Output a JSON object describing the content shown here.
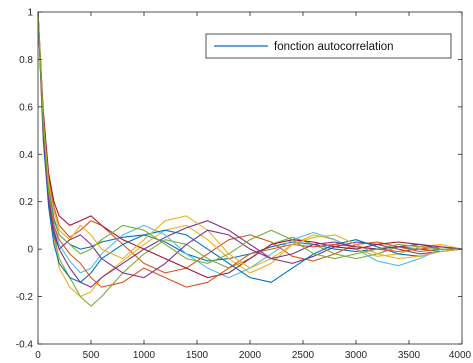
{
  "chart_data": {
    "type": "line",
    "title": "",
    "xlabel": "",
    "ylabel": "",
    "xlim": [
      0,
      4000
    ],
    "ylim": [
      -0.4,
      1
    ],
    "xticks": [
      0,
      500,
      1000,
      1500,
      2000,
      2500,
      3000,
      3500,
      4000
    ],
    "yticks": [
      -0.4,
      -0.2,
      0,
      0.2,
      0.4,
      0.6,
      0.8,
      1
    ],
    "grid": false,
    "legend": {
      "position": "top-right",
      "entries": [
        "fonction autocorrelation"
      ]
    },
    "series": [
      {
        "name": "fonction autocorrelation",
        "color": "#0072bd",
        "x": [
          0,
          50,
          100,
          150,
          200,
          300,
          400,
          500,
          600,
          800,
          1000,
          1200,
          1400,
          1600,
          1800,
          2000,
          2200,
          2400,
          2600,
          2800,
          3000,
          3200,
          3400,
          3600,
          3800,
          4000
        ],
        "y": [
          1,
          0.5,
          0.26,
          0.13,
          0.06,
          0.02,
          0.0,
          0.01,
          0.03,
          0.05,
          0.06,
          0.03,
          -0.02,
          -0.05,
          -0.04,
          -0.02,
          0.01,
          0.03,
          0.02,
          0.0,
          -0.01,
          0.0,
          0.01,
          0.0,
          -0.01,
          0.0
        ]
      },
      {
        "color": "#d95319",
        "x": [
          0,
          50,
          100,
          150,
          200,
          300,
          400,
          500,
          600,
          800,
          1000,
          1200,
          1400,
          1600,
          1800,
          2000,
          2200,
          2400,
          2600,
          2800,
          3000,
          3200,
          3400,
          3600,
          3800,
          4000
        ],
        "y": [
          1,
          0.55,
          0.3,
          0.18,
          0.1,
          0.05,
          0.08,
          0.12,
          0.1,
          0.02,
          -0.06,
          -0.1,
          -0.08,
          -0.02,
          0.04,
          0.06,
          0.03,
          -0.03,
          -0.05,
          -0.02,
          0.02,
          0.03,
          0.01,
          -0.01,
          0.0,
          0.0
        ]
      },
      {
        "color": "#edb120",
        "x": [
          0,
          50,
          100,
          150,
          200,
          300,
          400,
          500,
          600,
          800,
          1000,
          1200,
          1400,
          1600,
          1800,
          2000,
          2200,
          2400,
          2600,
          2800,
          3000,
          3200,
          3400,
          3600,
          3800,
          4000
        ],
        "y": [
          1,
          0.45,
          0.2,
          0.05,
          -0.08,
          -0.16,
          -0.2,
          -0.18,
          -0.12,
          -0.05,
          0.02,
          0.08,
          0.1,
          0.04,
          -0.04,
          -0.1,
          -0.06,
          0.02,
          0.06,
          0.04,
          0.0,
          -0.03,
          -0.02,
          0.01,
          0.02,
          0.0
        ]
      },
      {
        "color": "#7e2f8e",
        "x": [
          0,
          50,
          100,
          150,
          200,
          300,
          400,
          500,
          600,
          800,
          1000,
          1200,
          1400,
          1600,
          1800,
          2000,
          2200,
          2400,
          2600,
          2800,
          3000,
          3200,
          3400,
          3600,
          3800,
          4000
        ],
        "y": [
          1,
          0.5,
          0.22,
          0.08,
          0.0,
          -0.08,
          -0.14,
          -0.16,
          -0.12,
          -0.06,
          0.0,
          0.05,
          0.09,
          0.12,
          0.08,
          0.02,
          -0.04,
          -0.06,
          -0.03,
          0.01,
          0.03,
          0.02,
          0.0,
          -0.02,
          -0.01,
          0.0
        ]
      },
      {
        "color": "#77ac30",
        "x": [
          0,
          50,
          100,
          150,
          200,
          300,
          400,
          500,
          600,
          800,
          1000,
          1200,
          1400,
          1600,
          1800,
          2000,
          2200,
          2400,
          2600,
          2800,
          3000,
          3200,
          3400,
          3600,
          3800,
          4000
        ],
        "y": [
          1,
          0.48,
          0.2,
          0.06,
          -0.04,
          -0.12,
          -0.2,
          -0.24,
          -0.2,
          -0.1,
          -0.02,
          0.04,
          0.02,
          -0.04,
          -0.08,
          -0.04,
          0.02,
          0.05,
          0.02,
          -0.02,
          -0.04,
          -0.02,
          0.01,
          0.02,
          0.0,
          0.0
        ]
      },
      {
        "color": "#4dbeee",
        "x": [
          0,
          50,
          100,
          150,
          200,
          300,
          400,
          500,
          600,
          800,
          1000,
          1200,
          1400,
          1600,
          1800,
          2000,
          2200,
          2400,
          2600,
          2800,
          3000,
          3200,
          3400,
          3600,
          3800,
          4000
        ],
        "y": [
          1,
          0.52,
          0.25,
          0.1,
          0.02,
          -0.05,
          -0.1,
          -0.08,
          -0.02,
          0.06,
          0.1,
          0.06,
          -0.02,
          -0.08,
          -0.12,
          -0.08,
          -0.02,
          0.04,
          0.07,
          0.04,
          0.0,
          -0.05,
          -0.07,
          -0.04,
          0.0,
          0.0
        ]
      },
      {
        "color": "#a2142f",
        "x": [
          0,
          50,
          100,
          150,
          200,
          300,
          400,
          500,
          600,
          800,
          1000,
          1200,
          1400,
          1600,
          1800,
          2000,
          2200,
          2400,
          2600,
          2800,
          3000,
          3200,
          3400,
          3600,
          3800,
          4000
        ],
        "y": [
          1,
          0.58,
          0.32,
          0.2,
          0.14,
          0.1,
          0.12,
          0.14,
          0.1,
          0.04,
          0.0,
          -0.04,
          -0.08,
          -0.12,
          -0.1,
          -0.04,
          0.02,
          0.04,
          0.03,
          0.01,
          0.0,
          0.02,
          0.03,
          0.02,
          0.0,
          0.0
        ]
      },
      {
        "color": "#0072bd",
        "x": [
          0,
          50,
          100,
          150,
          200,
          300,
          400,
          500,
          600,
          800,
          1000,
          1200,
          1400,
          1600,
          1800,
          2000,
          2200,
          2400,
          2600,
          2800,
          3000,
          3200,
          3400,
          3600,
          3800,
          4000
        ],
        "y": [
          1,
          0.46,
          0.18,
          0.02,
          -0.06,
          -0.12,
          -0.14,
          -0.1,
          -0.04,
          0.02,
          0.06,
          0.08,
          0.06,
          0.0,
          -0.06,
          -0.12,
          -0.14,
          -0.08,
          -0.02,
          0.02,
          0.04,
          0.01,
          -0.02,
          -0.03,
          -0.01,
          0.0
        ]
      },
      {
        "color": "#d95319",
        "x": [
          0,
          50,
          100,
          150,
          200,
          300,
          400,
          500,
          600,
          800,
          1000,
          1200,
          1400,
          1600,
          1800,
          2000,
          2200,
          2400,
          2600,
          2800,
          3000,
          3200,
          3400,
          3600,
          3800,
          4000
        ],
        "y": [
          1,
          0.5,
          0.24,
          0.1,
          0.04,
          -0.02,
          -0.06,
          -0.12,
          -0.16,
          -0.14,
          -0.08,
          -0.12,
          -0.16,
          -0.14,
          -0.08,
          -0.02,
          0.0,
          0.02,
          0.01,
          0.02,
          0.01,
          0.0,
          -0.01,
          0.0,
          0.01,
          0.0
        ]
      },
      {
        "color": "#edb120",
        "x": [
          0,
          50,
          100,
          150,
          200,
          300,
          400,
          500,
          600,
          800,
          1000,
          1200,
          1400,
          1600,
          1800,
          2000,
          2200,
          2400,
          2600,
          2800,
          3000,
          3200,
          3400,
          3600,
          3800,
          4000
        ],
        "y": [
          1,
          0.54,
          0.28,
          0.16,
          0.08,
          0.04,
          0.1,
          0.06,
          0.0,
          -0.04,
          0.04,
          0.12,
          0.14,
          0.08,
          -0.02,
          -0.08,
          -0.04,
          0.02,
          0.05,
          0.06,
          0.02,
          -0.02,
          -0.04,
          -0.03,
          -0.01,
          0.0
        ]
      },
      {
        "color": "#7e2f8e",
        "x": [
          0,
          50,
          100,
          150,
          200,
          300,
          400,
          500,
          600,
          800,
          1000,
          1200,
          1400,
          1600,
          1800,
          2000,
          2200,
          2400,
          2600,
          2800,
          3000,
          3200,
          3400,
          3600,
          3800,
          4000
        ],
        "y": [
          1,
          0.5,
          0.2,
          0.06,
          0.0,
          0.04,
          0.06,
          0.02,
          -0.04,
          -0.1,
          -0.12,
          -0.06,
          0.02,
          0.08,
          0.06,
          0.0,
          -0.04,
          -0.02,
          0.02,
          0.03,
          0.01,
          0.0,
          0.01,
          0.02,
          0.01,
          0.0
        ]
      },
      {
        "color": "#77ac30",
        "x": [
          0,
          50,
          100,
          150,
          200,
          300,
          400,
          500,
          600,
          800,
          1000,
          1200,
          1400,
          1600,
          1800,
          2000,
          2200,
          2400,
          2600,
          2800,
          3000,
          3200,
          3400,
          3600,
          3800,
          4000
        ],
        "y": [
          1,
          0.52,
          0.24,
          0.12,
          0.06,
          0.02,
          -0.02,
          0.0,
          0.04,
          0.1,
          0.08,
          0.02,
          -0.04,
          -0.06,
          -0.02,
          0.04,
          0.08,
          0.04,
          -0.02,
          -0.04,
          -0.02,
          0.0,
          0.02,
          0.01,
          0.0,
          0.0
        ]
      }
    ]
  }
}
